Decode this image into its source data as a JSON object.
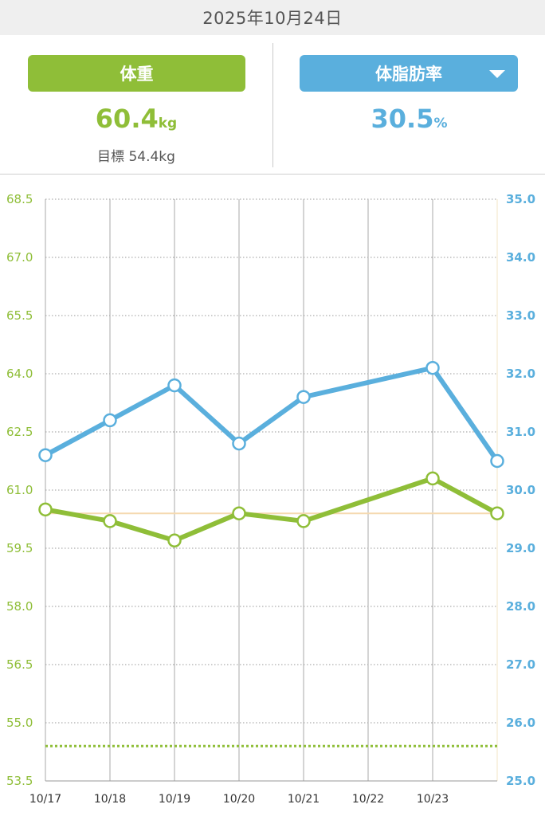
{
  "header": {
    "date": "2025年10月24日"
  },
  "weight_panel": {
    "button_label": "体重",
    "value": "60.4",
    "unit": "kg",
    "goal_text": "目標 54.4kg"
  },
  "fat_panel": {
    "button_label": "体脂肪率",
    "value": "30.5",
    "unit": "%"
  },
  "chart_data": {
    "type": "line",
    "categories": [
      "10/17",
      "10/18",
      "10/19",
      "10/20",
      "10/21",
      "10/22",
      "10/23",
      "10/24"
    ],
    "x_tick_labels": [
      "10/17",
      "10/18",
      "10/19",
      "10/20",
      "10/21",
      "10/22",
      "10/23"
    ],
    "series": [
      {
        "axis": "left",
        "color": "#8fbe38",
        "values": [
          60.5,
          60.2,
          59.7,
          60.4,
          60.2,
          null,
          61.3,
          60.4
        ]
      },
      {
        "axis": "right",
        "color": "#5aafdd",
        "values": [
          30.6,
          31.2,
          31.8,
          30.8,
          31.6,
          null,
          32.1,
          30.5
        ]
      }
    ],
    "left_axis": {
      "ylim": [
        53.5,
        68.5
      ],
      "ticks": [
        "68.5",
        "67.0",
        "65.5",
        "64.0",
        "62.5",
        "61.0",
        "59.5",
        "58.0",
        "56.5",
        "55.0",
        "53.5"
      ],
      "color": "#8fbe38"
    },
    "right_axis": {
      "ylim": [
        25.0,
        35.0
      ],
      "ticks": [
        "35.0",
        "34.0",
        "33.0",
        "32.0",
        "31.0",
        "30.0",
        "29.0",
        "28.0",
        "27.0",
        "26.0",
        "25.0"
      ],
      "color": "#5aafdd"
    },
    "reference_lines": [
      {
        "axis": "left",
        "value": 60.4,
        "color": "#f5d9b0",
        "style": "solid"
      },
      {
        "axis": "left",
        "value": 54.4,
        "color": "#8fbe38",
        "style": "dotted"
      }
    ],
    "grid": true
  }
}
